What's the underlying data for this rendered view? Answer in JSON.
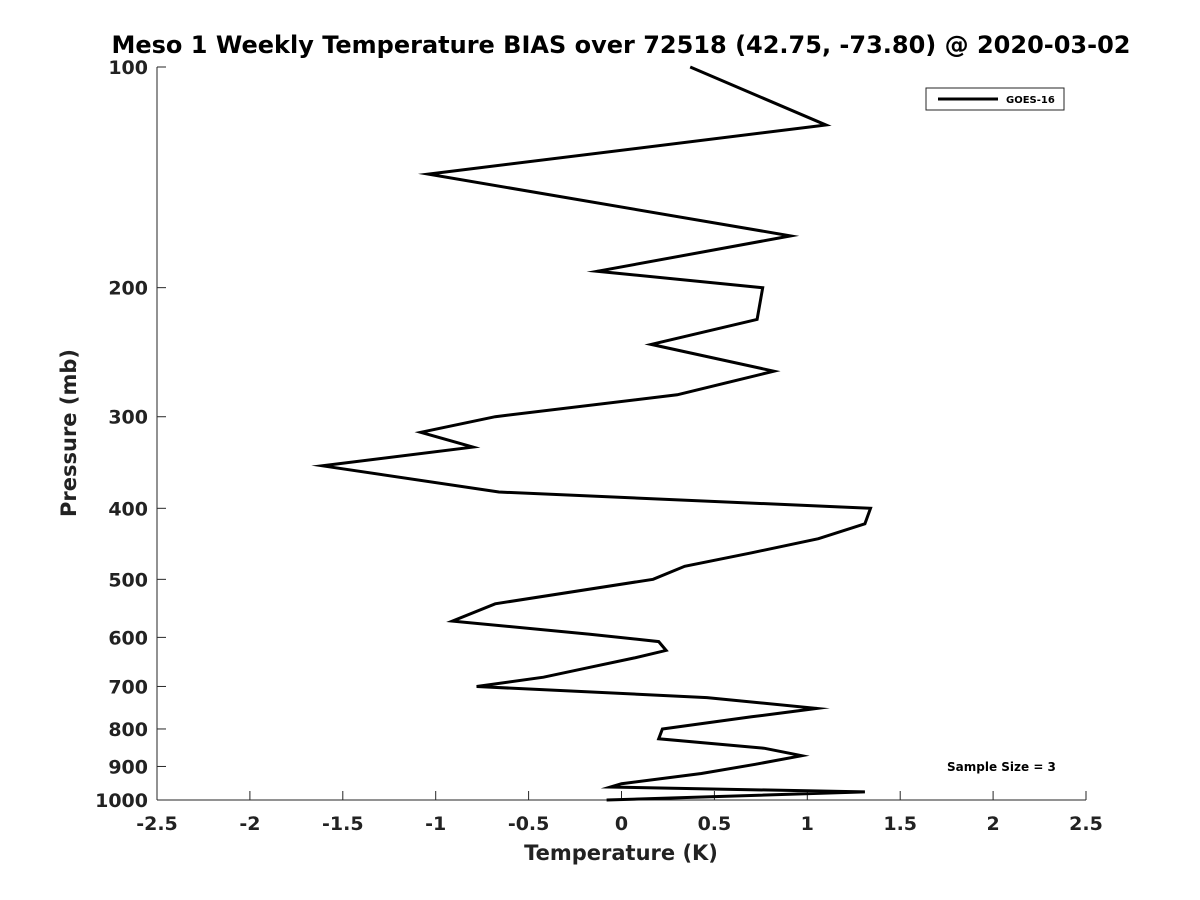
{
  "chart_data": {
    "type": "line",
    "title": "Meso 1 Weekly Temperature BIAS over 72518 (42.75, -73.80) @ 2020-03-02",
    "xlabel": "Temperature (K)",
    "ylabel": "Pressure (mb)",
    "xlim": [
      -2.5,
      2.5
    ],
    "ylim": [
      1000,
      100
    ],
    "yscale": "log",
    "xticks": [
      -2.5,
      -2,
      -1.5,
      -1,
      -0.5,
      0,
      0.5,
      1,
      1.5,
      2,
      2.5
    ],
    "xtick_labels": [
      "-2.5",
      "-2",
      "-1.5",
      "-1",
      "-0.5",
      "0",
      "0.5",
      "1",
      "1.5",
      "2",
      "2.5"
    ],
    "yticks": [
      100,
      200,
      300,
      400,
      500,
      600,
      700,
      800,
      900,
      1000
    ],
    "ytick_labels": [
      "100",
      "200",
      "300",
      "400",
      "500",
      "600",
      "700",
      "800",
      "900",
      "1000"
    ],
    "grid": false,
    "legend_position": "top-right",
    "annotation": "Sample Size = 3",
    "series": [
      {
        "name": "GOES-16",
        "color": "#000000",
        "points": [
          [
            0.37,
            100
          ],
          [
            1.1,
            120
          ],
          [
            -1.04,
            140
          ],
          [
            0.91,
            170
          ],
          [
            -0.13,
            190
          ],
          [
            0.76,
            200
          ],
          [
            0.73,
            221
          ],
          [
            0.16,
            239
          ],
          [
            0.82,
            260
          ],
          [
            0.3,
            280
          ],
          [
            -0.68,
            300
          ],
          [
            -1.08,
            315
          ],
          [
            -0.8,
            330
          ],
          [
            -1.61,
            350
          ],
          [
            -0.66,
            380
          ],
          [
            1.34,
            400
          ],
          [
            1.31,
            420
          ],
          [
            1.06,
            440
          ],
          [
            0.7,
            460
          ],
          [
            0.34,
            480
          ],
          [
            0.17,
            500
          ],
          [
            -0.68,
            540
          ],
          [
            -0.91,
            570
          ],
          [
            -0.17,
            594
          ],
          [
            0.2,
            608
          ],
          [
            0.24,
            625
          ],
          [
            0.07,
            640
          ],
          [
            -0.18,
            660
          ],
          [
            -0.42,
            680
          ],
          [
            -0.78,
            700
          ],
          [
            0.46,
            725
          ],
          [
            1.05,
            750
          ],
          [
            0.7,
            770
          ],
          [
            0.22,
            800
          ],
          [
            0.2,
            825
          ],
          [
            0.77,
            850
          ],
          [
            0.97,
            870
          ],
          [
            0.72,
            894
          ],
          [
            0.43,
            920
          ],
          [
            0.0,
            950
          ],
          [
            -0.06,
            960
          ],
          [
            1.31,
            975
          ],
          [
            0.48,
            990
          ],
          [
            -0.08,
            1000
          ]
        ]
      }
    ]
  }
}
